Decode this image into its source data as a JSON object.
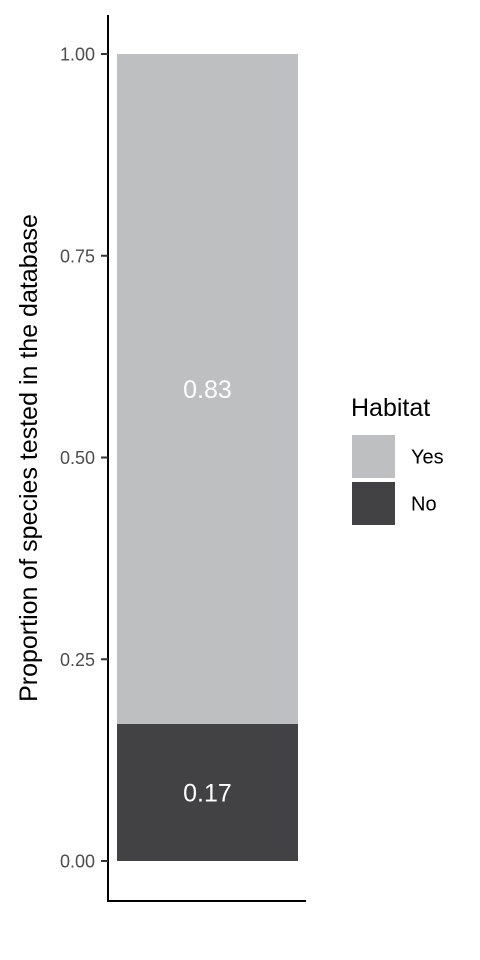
{
  "chart_data": {
    "type": "bar",
    "stacked": true,
    "categories": [
      ""
    ],
    "xlabel": "",
    "ylabel": "Proportion of species tested in the database",
    "ylim": [
      0,
      1
    ],
    "yticks": [
      {
        "value": 0,
        "label": "0.00"
      },
      {
        "value": 0.25,
        "label": "0.25"
      },
      {
        "value": 0.5,
        "label": "0.50"
      },
      {
        "value": 0.75,
        "label": "0.75"
      },
      {
        "value": 1,
        "label": "1.00"
      }
    ],
    "series": [
      {
        "name": "No",
        "values": [
          0.17
        ],
        "color": "#424244",
        "label": "0.17"
      },
      {
        "name": "Yes",
        "values": [
          0.83
        ],
        "color": "#bebfc1",
        "label": "0.83"
      }
    ],
    "legend": {
      "title": "Habitat",
      "position": "right",
      "entries": [
        {
          "label": "Yes",
          "color": "#bebfc1"
        },
        {
          "label": "No",
          "color": "#424244"
        }
      ]
    },
    "grid": false
  }
}
